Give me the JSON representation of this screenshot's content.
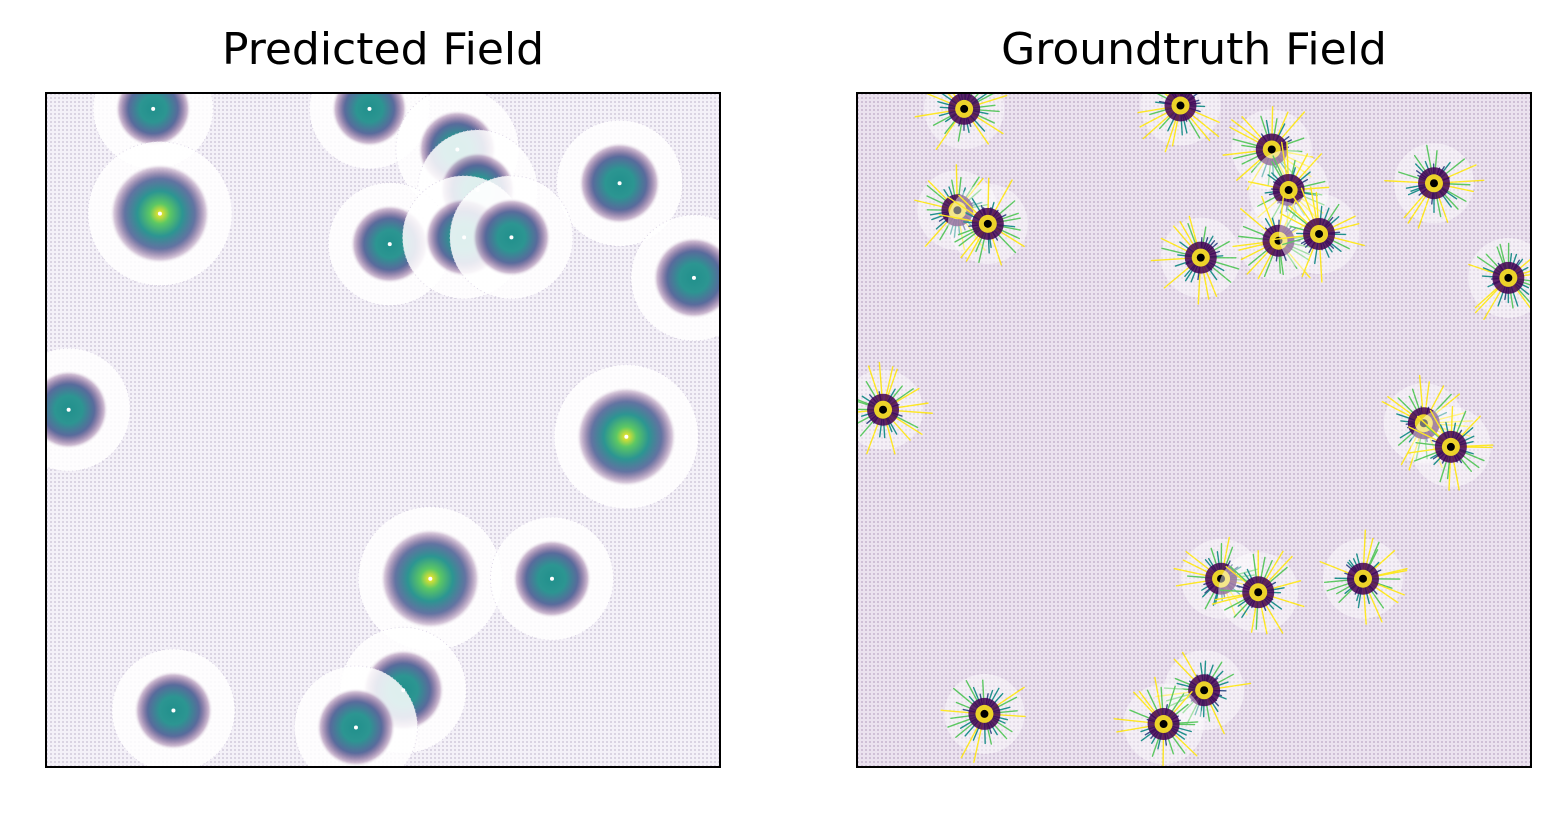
{
  "figure": {
    "panels": [
      {
        "title": "Predicted Field"
      },
      {
        "title": "Groundtruth Field"
      }
    ]
  },
  "colors": {
    "background_tint_left": "#f4f1f8",
    "background_tint_right": "#ebe2ef",
    "colormap": [
      "#440154",
      "#3b528b",
      "#21908c",
      "#5dc863",
      "#fde725"
    ],
    "source_marker": "#000000"
  },
  "chart_data": [
    {
      "type": "vector_field",
      "title": "Predicted Field",
      "xlabel": "",
      "ylabel": "",
      "xlim": [
        0,
        1
      ],
      "ylim": [
        0,
        1
      ],
      "axes_ticks": false,
      "colormap": "viridis",
      "sources": [
        {
          "x": 0.16,
          "y": 0.975,
          "strength": 0.6
        },
        {
          "x": 0.48,
          "y": 0.975,
          "strength": 0.6
        },
        {
          "x": 0.61,
          "y": 0.915,
          "strength": 0.65
        },
        {
          "x": 0.64,
          "y": 0.855,
          "strength": 0.6
        },
        {
          "x": 0.85,
          "y": 0.865,
          "strength": 0.7
        },
        {
          "x": 0.17,
          "y": 0.82,
          "strength": 1.0
        },
        {
          "x": 0.51,
          "y": 0.775,
          "strength": 0.65
        },
        {
          "x": 0.62,
          "y": 0.785,
          "strength": 0.65
        },
        {
          "x": 0.69,
          "y": 0.785,
          "strength": 0.65
        },
        {
          "x": 0.96,
          "y": 0.725,
          "strength": 0.7
        },
        {
          "x": 0.035,
          "y": 0.53,
          "strength": 0.65
        },
        {
          "x": 0.86,
          "y": 0.49,
          "strength": 1.0
        },
        {
          "x": 0.57,
          "y": 0.28,
          "strength": 1.0
        },
        {
          "x": 0.75,
          "y": 0.28,
          "strength": 0.65
        },
        {
          "x": 0.53,
          "y": 0.115,
          "strength": 0.7
        },
        {
          "x": 0.19,
          "y": 0.085,
          "strength": 0.65
        },
        {
          "x": 0.46,
          "y": 0.06,
          "strength": 0.65
        }
      ]
    },
    {
      "type": "vector_field",
      "title": "Groundtruth Field",
      "xlabel": "",
      "ylabel": "",
      "xlim": [
        0,
        1
      ],
      "ylim": [
        0,
        1
      ],
      "axes_ticks": false,
      "colormap": "viridis",
      "sources": [
        {
          "x": 0.16,
          "y": 0.975
        },
        {
          "x": 0.48,
          "y": 0.98
        },
        {
          "x": 0.615,
          "y": 0.915
        },
        {
          "x": 0.64,
          "y": 0.855
        },
        {
          "x": 0.855,
          "y": 0.865
        },
        {
          "x": 0.15,
          "y": 0.825
        },
        {
          "x": 0.195,
          "y": 0.805
        },
        {
          "x": 0.51,
          "y": 0.755
        },
        {
          "x": 0.625,
          "y": 0.78
        },
        {
          "x": 0.685,
          "y": 0.79
        },
        {
          "x": 0.965,
          "y": 0.725
        },
        {
          "x": 0.04,
          "y": 0.53
        },
        {
          "x": 0.84,
          "y": 0.51
        },
        {
          "x": 0.88,
          "y": 0.475
        },
        {
          "x": 0.54,
          "y": 0.28
        },
        {
          "x": 0.595,
          "y": 0.26
        },
        {
          "x": 0.75,
          "y": 0.28
        },
        {
          "x": 0.515,
          "y": 0.115
        },
        {
          "x": 0.19,
          "y": 0.08
        },
        {
          "x": 0.455,
          "y": 0.065
        }
      ]
    }
  ]
}
